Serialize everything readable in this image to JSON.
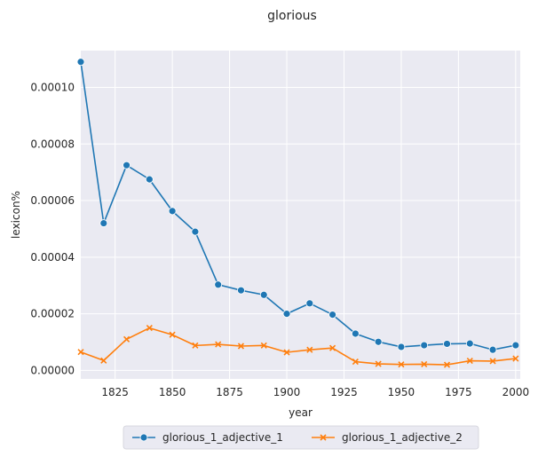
{
  "chart_data": {
    "type": "line",
    "title": "glorious",
    "xlabel": "year",
    "ylabel": "lexicon%",
    "xlim": [
      1810,
      2002
    ],
    "ylim": [
      -3e-06,
      0.000113
    ],
    "xticks": [
      1825,
      1850,
      1875,
      1900,
      1925,
      1950,
      1975,
      2000
    ],
    "xtick_labels": [
      "1825",
      "1850",
      "1875",
      "1900",
      "1925",
      "1950",
      "1975",
      "2000"
    ],
    "yticks": [
      0.0,
      2e-05,
      4e-05,
      6e-05,
      8e-05,
      0.0001
    ],
    "ytick_labels": [
      "0.00000",
      "0.00002",
      "0.00004",
      "0.00006",
      "0.00008",
      "0.00010"
    ],
    "grid": true,
    "legend_placement": "bottom-center",
    "x": [
      1810,
      1820,
      1830,
      1840,
      1850,
      1860,
      1870,
      1880,
      1890,
      1900,
      1910,
      1920,
      1930,
      1940,
      1950,
      1960,
      1970,
      1980,
      1990,
      2000
    ],
    "series": [
      {
        "name": "glorious_1_adjective_1",
        "color": "#1f77b4",
        "marker": "circle",
        "values": [
          0.000109,
          5.2e-05,
          7.25e-05,
          6.75e-05,
          5.63e-05,
          4.9e-05,
          3.03e-05,
          2.83e-05,
          2.67e-05,
          2e-05,
          2.37e-05,
          1.97e-05,
          1.3e-05,
          1.01e-05,
          8.3e-06,
          8.9e-06,
          9.4e-06,
          9.5e-06,
          7.3e-06,
          8.9e-06
        ]
      },
      {
        "name": "glorious_1_adjective_2",
        "color": "#ff7f0e",
        "marker": "x",
        "values": [
          6.5e-06,
          3.5e-06,
          1.1e-05,
          1.5e-05,
          1.26e-05,
          8.8e-06,
          9.2e-06,
          8.6e-06,
          8.8e-06,
          6.4e-06,
          7.3e-06,
          7.9e-06,
          3.1e-06,
          2.3e-06,
          2.1e-06,
          2.2e-06,
          2e-06,
          3.4e-06,
          3.3e-06,
          4.2e-06
        ]
      }
    ],
    "colors": {
      "background": "#eaeaf2",
      "grid": "#ffffff",
      "text": "#262626"
    }
  }
}
